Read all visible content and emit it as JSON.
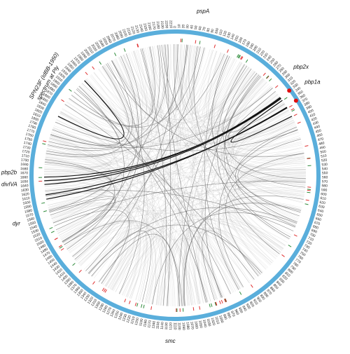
{
  "title": "SPN23F (IdBB-1950)",
  "subtitle": "spectrum at Ply",
  "genome": {
    "length": 2220,
    "tick_step": 10
  },
  "ring_color": "#5aaedb",
  "gene_labels": [
    {
      "name": "pspA",
      "pos": 60
    },
    {
      "name": "pbp2x",
      "pos": 305
    },
    {
      "name": "pbp1a",
      "pos": 345
    },
    {
      "name": "smc",
      "pos": 1120
    },
    {
      "name": "dyr",
      "pos": 1560
    },
    {
      "name": "divIVA",
      "pos": 1645
    },
    {
      "name": "pbp2b",
      "pos": 1670
    }
  ],
  "hotspots": [
    {
      "pos": 330,
      "color": "#e01010"
    },
    {
      "pos": 360,
      "color": "#e01010"
    }
  ],
  "strong_links": [
    [
      330,
      1650
    ],
    [
      332,
      1660
    ],
    [
      334,
      1640
    ],
    [
      362,
      1600
    ],
    [
      364,
      1612
    ],
    [
      340,
      390
    ],
    [
      1830,
      1950
    ]
  ]
}
